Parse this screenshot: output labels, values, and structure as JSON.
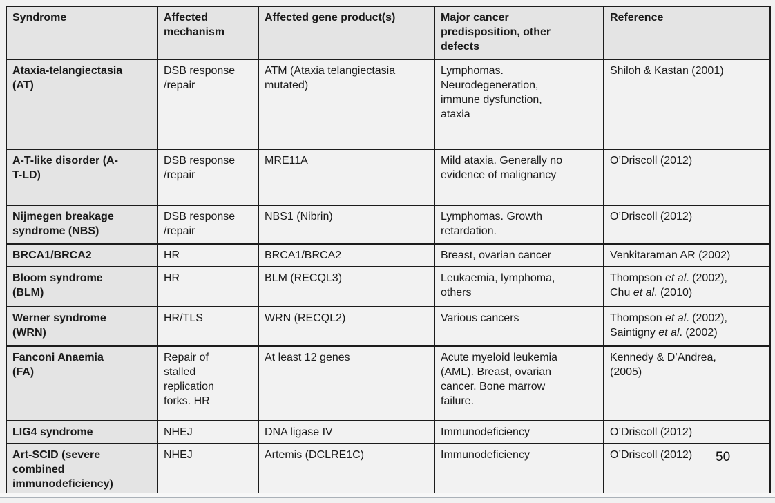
{
  "page_number": "50",
  "colors": {
    "header_bg": "#e4e4e4",
    "cell_bg": "#f2f2f2",
    "border": "#1c1c1c",
    "page_bg": "#f1f1f1",
    "divider": "#aab1b8"
  },
  "table": {
    "columns": [
      {
        "label": "Syndrome"
      },
      {
        "label": "Affected\nmechanism"
      },
      {
        "label": "Affected gene product(s)"
      },
      {
        "label": "Major cancer\npredisposition, other\ndefects"
      },
      {
        "label": "Reference"
      }
    ],
    "rows": [
      {
        "syndrome": "Ataxia-telangiectasia\n(AT)",
        "mechanism": "DSB response\n/repair",
        "gene": "ATM (Ataxia telangiectasia\nmutated)",
        "predisposition": "Lymphomas.\nNeurodegeneration,\nimmune dysfunction,\nataxia",
        "reference": [
          {
            "text": "Shiloh & Kastan (2001)",
            "italic": false
          }
        ]
      },
      {
        "syndrome": "A-T-like disorder (A-\nT-LD)",
        "mechanism": "DSB response\n/repair",
        "gene": "MRE11A",
        "predisposition": "Mild ataxia. Generally no\nevidence of malignancy",
        "reference": [
          {
            "text": "O’Driscoll (2012)",
            "italic": false
          }
        ]
      },
      {
        "syndrome": "Nijmegen breakage\nsyndrome (NBS)",
        "mechanism": "DSB response\n/repair",
        "gene": "NBS1 (Nibrin)",
        "predisposition": "Lymphomas. Growth\nretardation.",
        "reference": [
          {
            "text": "O’Driscoll (2012)",
            "italic": false
          }
        ]
      },
      {
        "syndrome": "BRCA1/BRCA2",
        "mechanism": "HR",
        "gene": "BRCA1/BRCA2",
        "predisposition": "Breast, ovarian cancer",
        "reference": [
          {
            "text": "Venkitaraman AR (2002)",
            "italic": false
          }
        ]
      },
      {
        "syndrome": "Bloom syndrome\n(BLM)",
        "mechanism": "HR",
        "gene": "BLM (RECQL3)",
        "predisposition": "Leukaemia, lymphoma,\nothers",
        "reference": [
          {
            "text": "Thompson ",
            "italic": false
          },
          {
            "text": "et al",
            "italic": true
          },
          {
            "text": ". (2002),\nChu ",
            "italic": false
          },
          {
            "text": "et al",
            "italic": true
          },
          {
            "text": ". (2010)",
            "italic": false
          }
        ]
      },
      {
        "syndrome": "Werner syndrome\n(WRN)",
        "mechanism": "HR/TLS",
        "gene": "WRN (RECQL2)",
        "predisposition": "Various cancers",
        "reference": [
          {
            "text": "Thompson ",
            "italic": false
          },
          {
            "text": "et al",
            "italic": true
          },
          {
            "text": ". (2002),\nSaintigny ",
            "italic": false
          },
          {
            "text": "et al",
            "italic": true
          },
          {
            "text": ". (2002)",
            "italic": false
          }
        ]
      },
      {
        "syndrome": "Fanconi Anaemia\n(FA)",
        "mechanism": "Repair of\nstalled\nreplication\nforks. HR",
        "gene": "At least 12 genes",
        "predisposition": "Acute myeloid leukemia\n(AML). Breast, ovarian\ncancer. Bone marrow\nfailure.",
        "reference": [
          {
            "text": "Kennedy & D’Andrea,\n(2005)",
            "italic": false
          }
        ]
      },
      {
        "syndrome": "LIG4 syndrome",
        "mechanism": "NHEJ",
        "gene": "DNA ligase IV",
        "predisposition": "Immunodeficiency",
        "reference": [
          {
            "text": "O’Driscoll (2012)",
            "italic": false
          }
        ]
      },
      {
        "syndrome": "Art-SCID (severe\ncombined\nimmunodeficiency)",
        "mechanism": "NHEJ",
        "gene": "Artemis (DCLRE1C)",
        "predisposition": "Immunodeficiency",
        "reference": [
          {
            "text": "O’Driscoll (2012)",
            "italic": false
          }
        ]
      }
    ]
  }
}
